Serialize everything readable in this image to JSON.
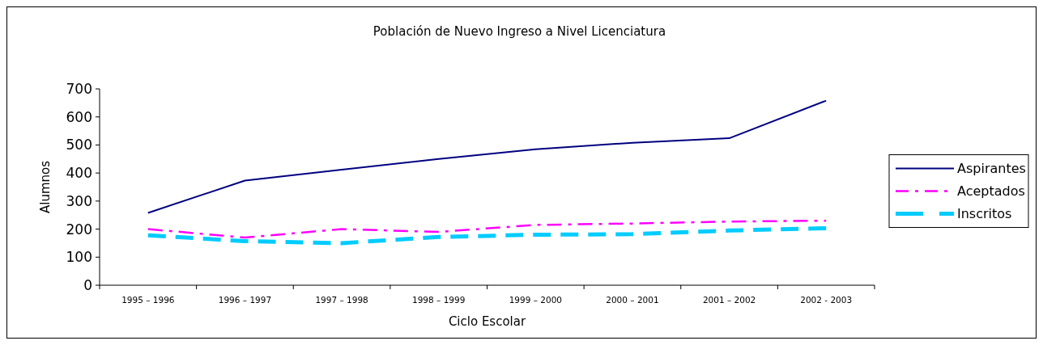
{
  "chart_data": {
    "type": "line",
    "title": "Población de Nuevo Ingreso a Nivel Licenciatura",
    "xlabel": "Ciclo Escolar",
    "ylabel": "Alumnos",
    "categories": [
      "1995 – 1996",
      "1996 – 1997",
      "1997 – 1998",
      "1998 – 1999",
      "1999 – 2000",
      "2000 – 2001",
      "2001 – 2002",
      "2002 - 2003"
    ],
    "series": [
      {
        "name": "Aspirantes",
        "color": "#000080",
        "line_style": "solid",
        "values": [
          258,
          373,
          412,
          450,
          485,
          508,
          524,
          658
        ]
      },
      {
        "name": "Aceptados",
        "color": "#ff00ff",
        "line_style": "dashdot",
        "values": [
          200,
          170,
          200,
          190,
          215,
          220,
          227,
          230
        ]
      },
      {
        "name": "Inscritos",
        "color": "#00ccff",
        "line_style": "dashed",
        "values": [
          178,
          157,
          150,
          172,
          180,
          182,
          195,
          203
        ]
      }
    ],
    "ylim": [
      0,
      700
    ],
    "yticks": [
      0,
      100,
      200,
      300,
      400,
      500,
      600,
      700
    ],
    "grid": false,
    "legend": "right",
    "marker": "none"
  }
}
